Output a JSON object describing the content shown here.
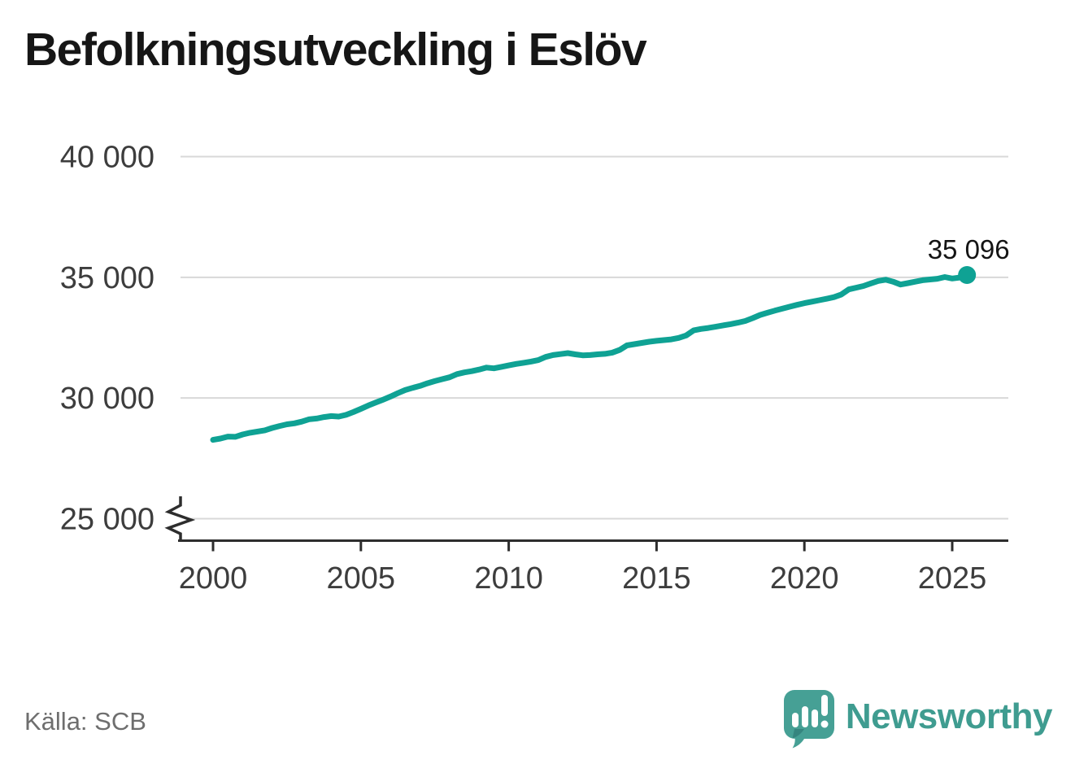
{
  "title": "Befolkningsutveckling i Eslöv",
  "source": "Källa: SCB",
  "branding": {
    "name": "Newsworthy"
  },
  "colors": {
    "line": "#0fa294",
    "grid": "#d8d8d8",
    "axis": "#2d2d2d",
    "tick_label": "#3d3d3d",
    "end_label": "#141414",
    "title": "#161616",
    "source": "#6e6e6e",
    "logo_icon": "#46a095",
    "logo_icon_dark": "#35857f",
    "logo_text": "#3f9c90",
    "background": "#ffffff"
  },
  "chart_data": {
    "type": "line",
    "title": "Befolkningsutveckling i Eslöv",
    "xlabel": "",
    "ylabel": "",
    "grid": true,
    "legend": "none",
    "axis_break_at_bottom": true,
    "xlim": [
      1999,
      2027
    ],
    "ylim": [
      25000,
      40000
    ],
    "x_ticks": [
      2000,
      2005,
      2010,
      2015,
      2020,
      2025
    ],
    "y_ticks": [
      {
        "value": 25000,
        "label": "25 000"
      },
      {
        "value": 30000,
        "label": "30 000"
      },
      {
        "value": 35000,
        "label": "35 000"
      },
      {
        "value": 40000,
        "label": "40 000"
      }
    ],
    "end_label": "35 096",
    "end_value": 35096,
    "series": [
      {
        "name": "Befolkning i Eslöv",
        "points": [
          [
            2000,
            28265
          ],
          [
            2000.25,
            28320
          ],
          [
            2000.5,
            28400
          ],
          [
            2000.75,
            28390
          ],
          [
            2001,
            28490
          ],
          [
            2001.25,
            28560
          ],
          [
            2001.5,
            28610
          ],
          [
            2001.75,
            28660
          ],
          [
            2002,
            28760
          ],
          [
            2002.25,
            28840
          ],
          [
            2002.5,
            28910
          ],
          [
            2002.75,
            28950
          ],
          [
            2003,
            29020
          ],
          [
            2003.25,
            29120
          ],
          [
            2003.5,
            29150
          ],
          [
            2003.75,
            29210
          ],
          [
            2004,
            29250
          ],
          [
            2004.25,
            29230
          ],
          [
            2004.5,
            29300
          ],
          [
            2004.75,
            29420
          ],
          [
            2005,
            29550
          ],
          [
            2005.25,
            29690
          ],
          [
            2005.5,
            29810
          ],
          [
            2005.75,
            29930
          ],
          [
            2006,
            30060
          ],
          [
            2006.25,
            30200
          ],
          [
            2006.5,
            30330
          ],
          [
            2006.75,
            30420
          ],
          [
            2007,
            30500
          ],
          [
            2007.25,
            30610
          ],
          [
            2007.5,
            30700
          ],
          [
            2007.75,
            30780
          ],
          [
            2008,
            30860
          ],
          [
            2008.25,
            30990
          ],
          [
            2008.5,
            31060
          ],
          [
            2008.75,
            31110
          ],
          [
            2009,
            31180
          ],
          [
            2009.25,
            31260
          ],
          [
            2009.5,
            31230
          ],
          [
            2009.75,
            31290
          ],
          [
            2010,
            31350
          ],
          [
            2010.25,
            31410
          ],
          [
            2010.5,
            31460
          ],
          [
            2010.75,
            31510
          ],
          [
            2011,
            31570
          ],
          [
            2011.25,
            31700
          ],
          [
            2011.5,
            31780
          ],
          [
            2011.75,
            31820
          ],
          [
            2012,
            31860
          ],
          [
            2012.25,
            31810
          ],
          [
            2012.5,
            31770
          ],
          [
            2012.75,
            31780
          ],
          [
            2013,
            31810
          ],
          [
            2013.25,
            31830
          ],
          [
            2013.5,
            31880
          ],
          [
            2013.75,
            31990
          ],
          [
            2014,
            32180
          ],
          [
            2014.25,
            32230
          ],
          [
            2014.5,
            32280
          ],
          [
            2014.75,
            32330
          ],
          [
            2015,
            32370
          ],
          [
            2015.25,
            32400
          ],
          [
            2015.5,
            32430
          ],
          [
            2015.75,
            32490
          ],
          [
            2016,
            32590
          ],
          [
            2016.25,
            32800
          ],
          [
            2016.5,
            32860
          ],
          [
            2016.75,
            32900
          ],
          [
            2017,
            32950
          ],
          [
            2017.25,
            33010
          ],
          [
            2017.5,
            33060
          ],
          [
            2017.75,
            33120
          ],
          [
            2018,
            33190
          ],
          [
            2018.25,
            33310
          ],
          [
            2018.5,
            33440
          ],
          [
            2018.75,
            33530
          ],
          [
            2019,
            33620
          ],
          [
            2019.25,
            33700
          ],
          [
            2019.5,
            33780
          ],
          [
            2019.75,
            33860
          ],
          [
            2020,
            33930
          ],
          [
            2020.25,
            33990
          ],
          [
            2020.5,
            34050
          ],
          [
            2020.75,
            34110
          ],
          [
            2021,
            34180
          ],
          [
            2021.25,
            34290
          ],
          [
            2021.5,
            34500
          ],
          [
            2021.75,
            34570
          ],
          [
            2022,
            34640
          ],
          [
            2022.25,
            34750
          ],
          [
            2022.5,
            34850
          ],
          [
            2022.75,
            34900
          ],
          [
            2023,
            34820
          ],
          [
            2023.25,
            34700
          ],
          [
            2023.5,
            34760
          ],
          [
            2023.75,
            34820
          ],
          [
            2024,
            34880
          ],
          [
            2024.25,
            34910
          ],
          [
            2024.5,
            34940
          ],
          [
            2024.75,
            35010
          ],
          [
            2025,
            34950
          ],
          [
            2025.25,
            34990
          ],
          [
            2025.5,
            35096
          ]
        ]
      }
    ]
  }
}
